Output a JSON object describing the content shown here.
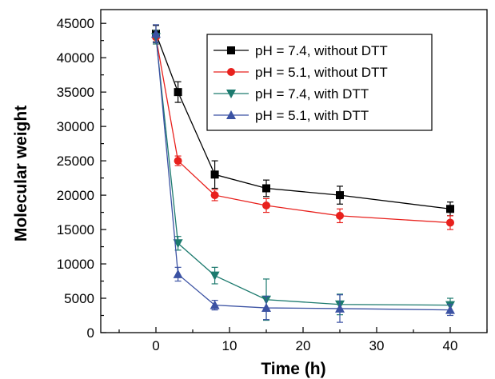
{
  "chart_data": {
    "type": "line",
    "xlabel": "Time (h)",
    "ylabel": "Molecular weight",
    "xlim": [
      -7.5,
      45
    ],
    "ylim": [
      0,
      47000
    ],
    "xticks": [
      "0",
      "10",
      "20",
      "30",
      "40"
    ],
    "yticks": [
      "0",
      "5000",
      "10000",
      "15000",
      "20000",
      "25000",
      "30000",
      "35000",
      "40000",
      "45000"
    ],
    "grid": false,
    "legend_position": "top-right",
    "series": [
      {
        "name": "pH = 7.4, without DTT",
        "color": "#000000",
        "marker": "square",
        "x": [
          0,
          3,
          8,
          15,
          25,
          40
        ],
        "y": [
          43500,
          35000,
          23000,
          21000,
          20000,
          18000
        ],
        "err": [
          1200,
          1500,
          2000,
          1200,
          1300,
          1000
        ]
      },
      {
        "name": "pH = 5.1, without DTT",
        "color": "#e8211d",
        "marker": "circle",
        "x": [
          0,
          3,
          8,
          15,
          25,
          40
        ],
        "y": [
          43000,
          25000,
          20000,
          18500,
          17000,
          16000
        ],
        "err": [
          1000,
          700,
          800,
          1000,
          1000,
          1000
        ]
      },
      {
        "name": "pH = 7.4, with DTT",
        "color": "#1c7a6e",
        "marker": "triangle-down",
        "x": [
          0,
          3,
          8,
          15,
          25,
          40
        ],
        "y": [
          43000,
          13000,
          8300,
          4800,
          4100,
          4000
        ],
        "err": [
          1000,
          1000,
          1200,
          3000,
          1500,
          1000
        ]
      },
      {
        "name": "pH = 5.1, with DTT",
        "color": "#3b52a3",
        "marker": "triangle-up",
        "x": [
          0,
          3,
          8,
          15,
          25,
          40
        ],
        "y": [
          43500,
          8500,
          4000,
          3600,
          3500,
          3300
        ],
        "err": [
          1300,
          1000,
          700,
          1700,
          2000,
          800
        ]
      }
    ]
  }
}
